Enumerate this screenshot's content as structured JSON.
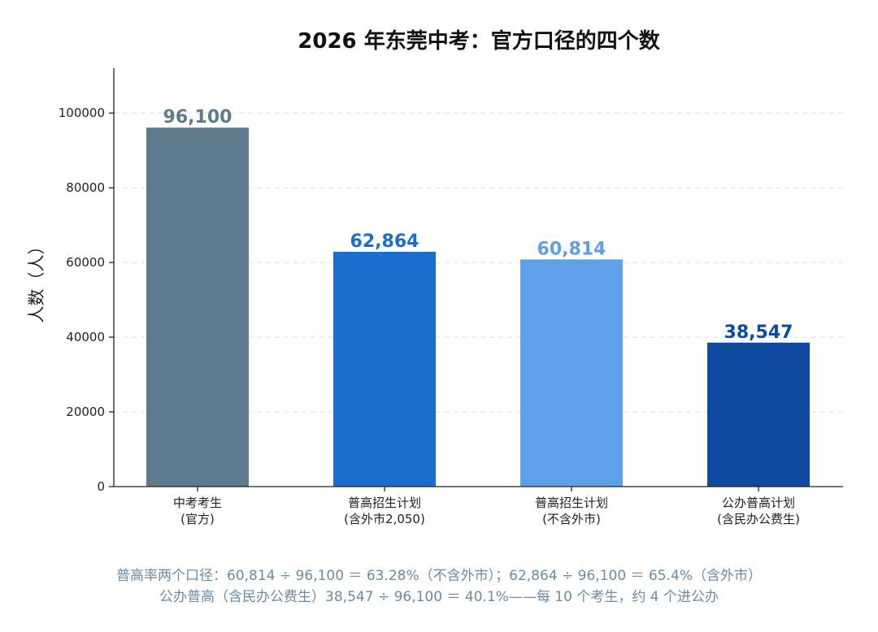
{
  "chart_data": {
    "type": "bar",
    "title": "2026 年东莞中考：官方口径的四个数",
    "xlabel": "",
    "ylabel": "人数（人）",
    "ylim": [
      0,
      112000
    ],
    "yticks": [
      0,
      20000,
      40000,
      60000,
      80000,
      100000
    ],
    "grid": "horizontal dashed",
    "categories": [
      [
        "中考考生",
        "(官方)"
      ],
      [
        "普高招生计划",
        "(含外市2,050)"
      ],
      [
        "普高招生计划",
        "(不含外市)"
      ],
      [
        "公办普高计划",
        "(含民办公费生)"
      ]
    ],
    "values": [
      96100,
      62864,
      60814,
      38547
    ],
    "data_labels": [
      "96,100",
      "62,864",
      "60,814",
      "38,547"
    ],
    "colors": [
      "#5e7b8b",
      "#1a6fcc",
      "#5e9fe9",
      "#0f4a9f"
    ]
  },
  "footnotes": [
    "普高率两个口径：60,814 ÷ 96,100 ＝ 63.28%（不含外市）；62,864 ÷ 96,100 ＝ 65.4%（含外市）",
    "公办普高（含民办公费生）38,547 ÷ 96,100 ＝ 40.1%——每 10 个考生，约 4 个进公办"
  ]
}
